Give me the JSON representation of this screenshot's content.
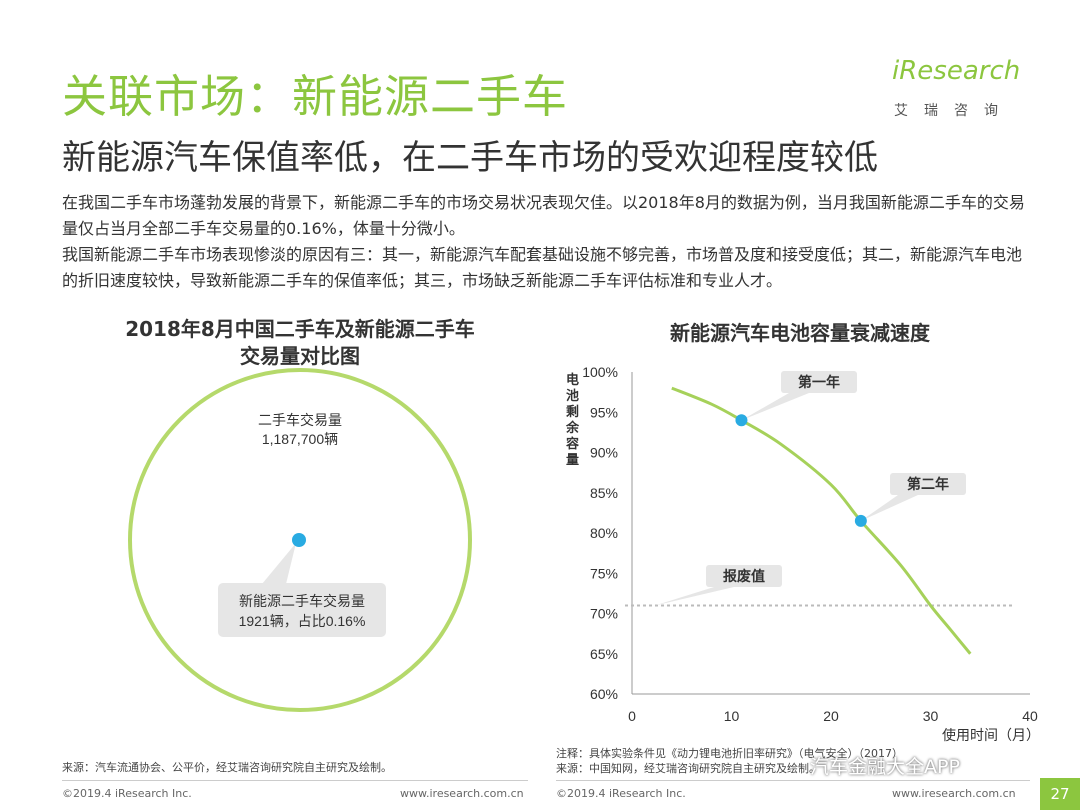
{
  "header": {
    "title": "关联市场：新能源二手车",
    "subtitle": "新能源汽车保值率低，在二手车市场的受欢迎程度较低"
  },
  "logo": {
    "text": "iResearch",
    "sub": "艾瑞咨询"
  },
  "body": {
    "para1": "在我国二手车市场蓬勃发展的背景下，新能源二手车的市场交易状况表现欠佳。以2018年8月的数据为例，当月我国新能源二手车的交易量仅占当月全部二手车交易量的0.16%，体量十分微小。",
    "para2": "我国新能源二手车市场表现惨淡的原因有三：其一，新能源汽车配套基础设施不够完善，市场普及度和接受度低；其二，新能源汽车电池的折旧速度较快，导致新能源二手车的保值率低；其三，市场缺乏新能源二手车评估标准和专业人才。"
  },
  "left_chart": {
    "title_line1": "2018年8月中国二手车及新能源二手车",
    "title_line2": "交易量对比图",
    "big_label": "二手车交易量",
    "big_value": "1,187,700辆",
    "small_label": "新能源二手车交易量",
    "small_value": "1921辆，占比0.16%",
    "source": "来源：汽车流通协会、公平价，经艾瑞咨询研究院自主研究及绘制。"
  },
  "chart_data": {
    "type": "line",
    "title": "新能源汽车电池容量衰减速度",
    "xlabel": "使用时间（月）",
    "ylabel": "电池剩余容量",
    "xlim": [
      0,
      40
    ],
    "ylim": [
      60,
      100
    ],
    "x_ticks": [
      "0",
      "10",
      "20",
      "30",
      "40"
    ],
    "y_ticks": [
      "60%",
      "65%",
      "70%",
      "75%",
      "80%",
      "85%",
      "90%",
      "95%",
      "100%"
    ],
    "series": [
      {
        "name": "电池剩余容量",
        "x": [
          4,
          8,
          11,
          15,
          20,
          23,
          27,
          30,
          32,
          34
        ],
        "y": [
          98,
          96,
          94,
          91,
          86,
          81.5,
          76,
          71,
          68,
          65
        ]
      }
    ],
    "markers": [
      {
        "label": "第一年",
        "x": 11,
        "y": 94
      },
      {
        "label": "第二年",
        "x": 23,
        "y": 81.5
      }
    ],
    "reference_line": {
      "label": "报废值",
      "y": 71
    },
    "note": "注释：具体实验条件见《动力锂电池折旧率研究》（电气安全）（2017）",
    "source": "来源：中国知网，经艾瑞咨询研究院自主研究及绘制。"
  },
  "colors": {
    "accent": "#8cc63f",
    "dot": "#29abe2",
    "callout": "#e6e6e6",
    "refline": "#bbbbbb"
  },
  "footer": {
    "left_copyright": "©2019.4 iResearch Inc.",
    "left_url": "www.iresearch.com.cn",
    "right_copyright": "©2019.4 iResearch Inc.",
    "right_url": "www.iresearch.com.cn",
    "page": "27",
    "watermark": "汽车金融大全APP"
  }
}
